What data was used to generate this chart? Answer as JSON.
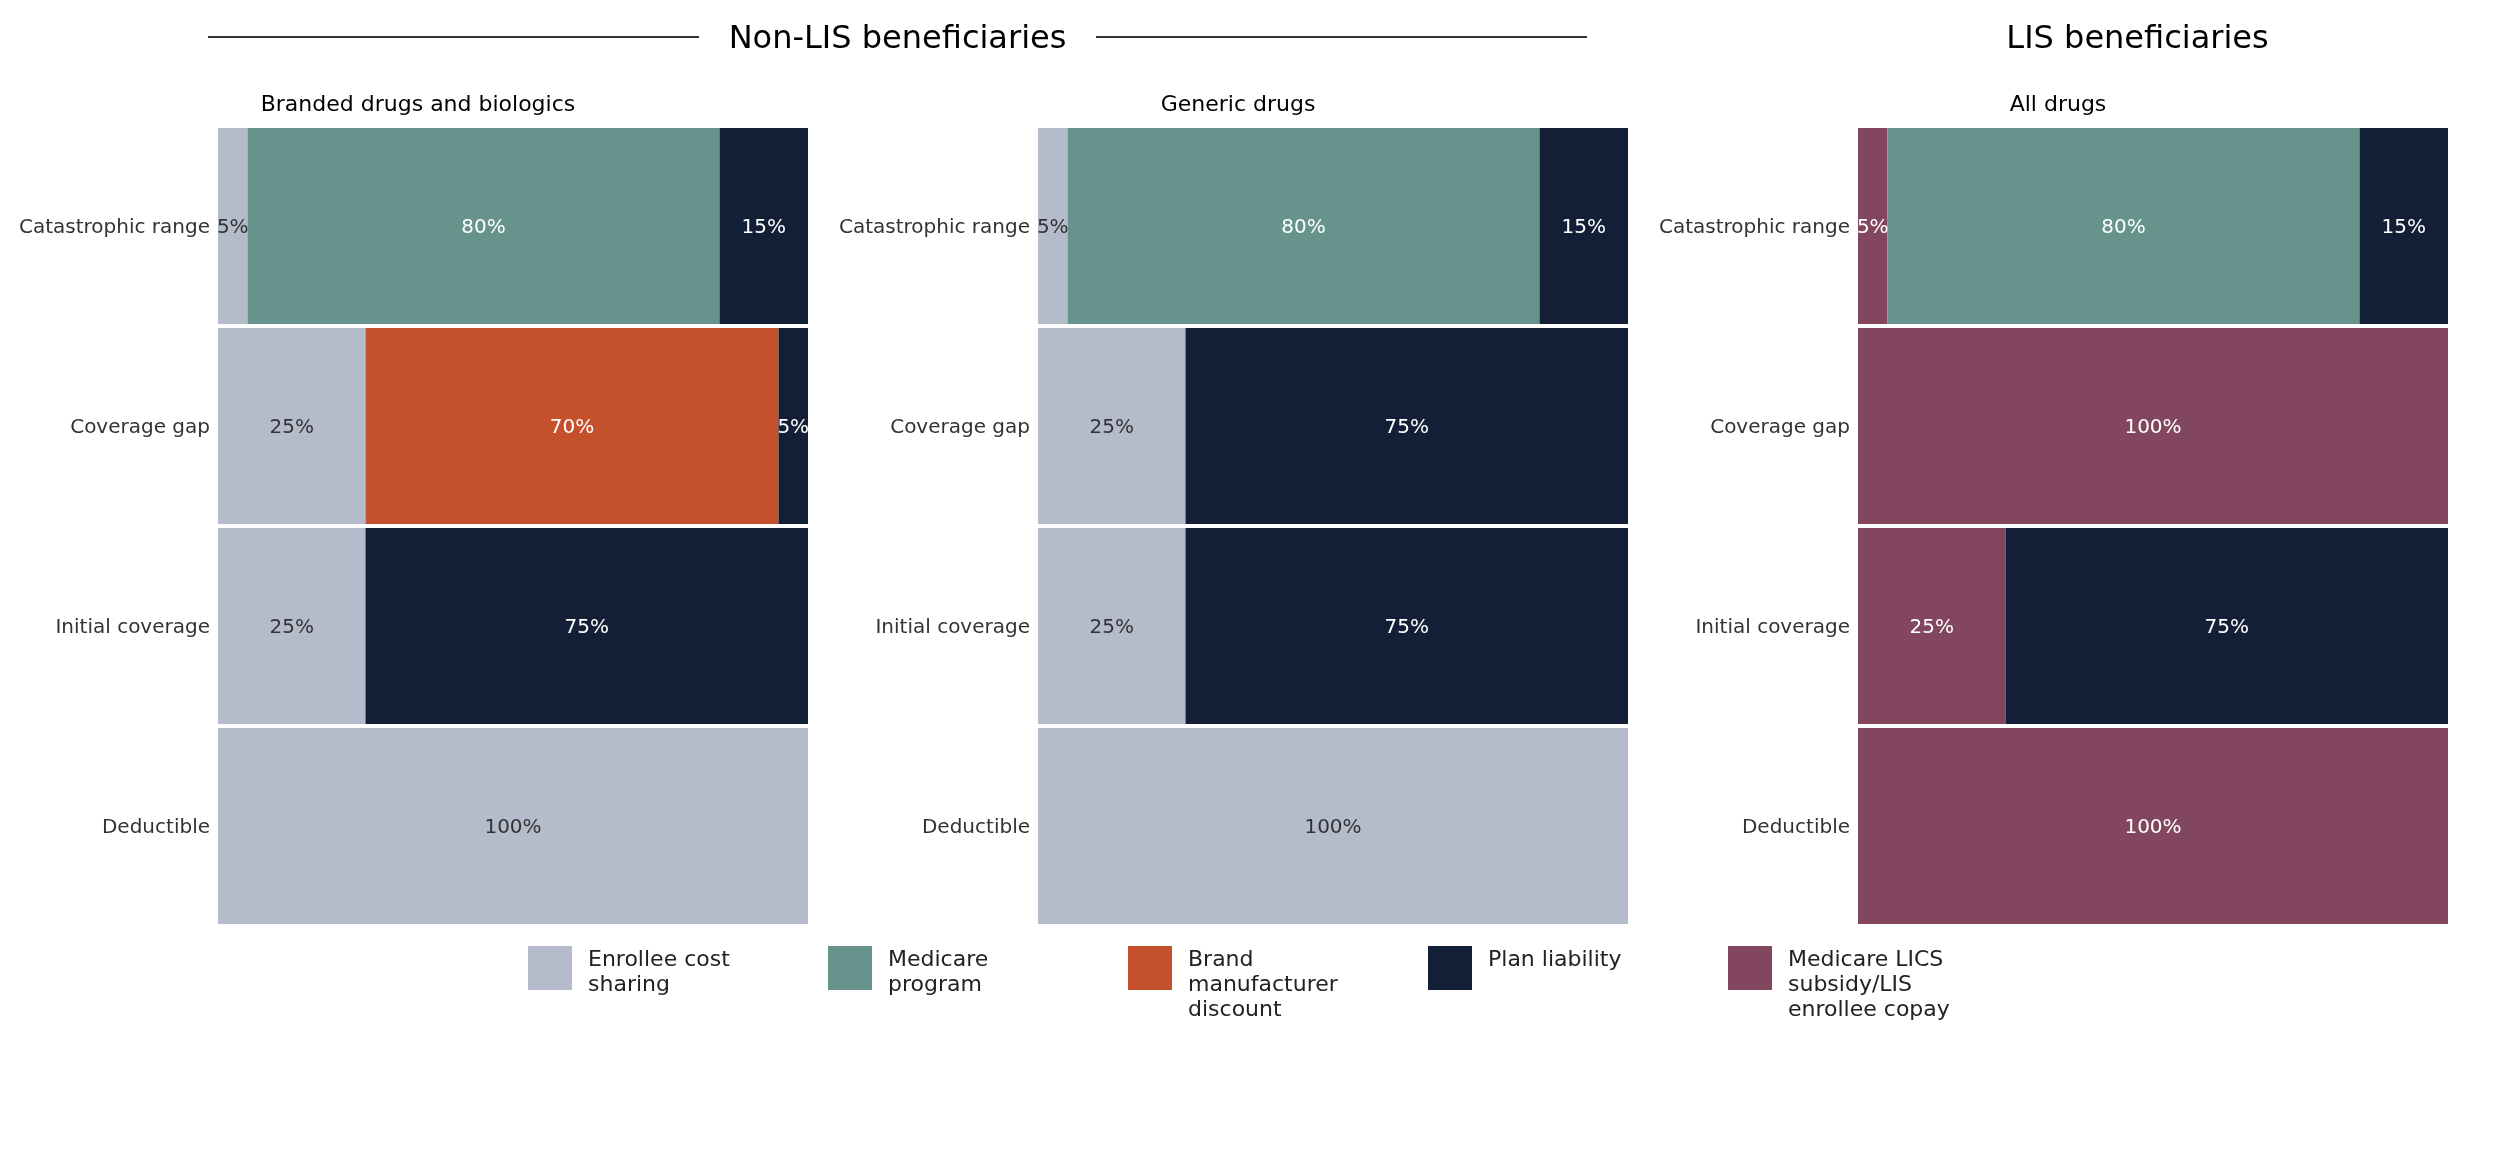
{
  "chart_data": [
    {
      "type": "bar",
      "title": "Non-LIS beneficiaries",
      "subtitle": "Branded drugs and biologics",
      "orientation": "horizontal",
      "stacked": true,
      "categories": [
        "Catastrophic range",
        "Coverage gap",
        "Initial coverage",
        "Deductible"
      ],
      "xlim": [
        0,
        100
      ],
      "tick_labels": "y",
      "legend": "bottom",
      "series": [
        {
          "name": "Enrollee cost sharing",
          "color": "#b4bccb",
          "values": [
            5,
            25,
            25,
            100
          ],
          "value_labels": [
            "5%",
            "25%",
            "25%",
            "100%"
          ]
        },
        {
          "name": "Medicare program",
          "color": "#66948c",
          "values": [
            80,
            null,
            null,
            null
          ],
          "value_labels": [
            "80%",
            null,
            null,
            null
          ]
        },
        {
          "name": "Brand manufacturer discount",
          "color": "#c4502c",
          "values": [
            null,
            70,
            null,
            null
          ],
          "value_labels": [
            null,
            "70%",
            null,
            null
          ]
        },
        {
          "name": "Plan liability",
          "color": "#131f36",
          "values": [
            15,
            5,
            75,
            null
          ],
          "value_labels": [
            "15%",
            "5%",
            "75%",
            null
          ]
        },
        {
          "name": "Medicare LICS subsidy/LIS enrollee copay",
          "color": "#82475e",
          "values": [
            null,
            null,
            null,
            null
          ],
          "value_labels": [
            null,
            null,
            null,
            null
          ]
        }
      ]
    },
    {
      "type": "bar",
      "subtitle": "Generic drugs",
      "orientation": "horizontal",
      "stacked": true,
      "categories": [
        "Catastrophic range",
        "Coverage gap",
        "Initial coverage",
        "Deductible"
      ],
      "xlim": [
        0,
        100
      ],
      "tick_labels": "y",
      "series": [
        {
          "color": "#b4bccb",
          "values": [
            5,
            25,
            25,
            100
          ],
          "value_labels": [
            "5%",
            "25%",
            "25%",
            "100%"
          ]
        },
        {
          "color": "#66948c",
          "values": [
            80,
            null,
            null,
            null
          ],
          "value_labels": [
            "80%",
            null,
            null,
            null
          ]
        },
        {
          "color": "#131f36",
          "values": [
            15,
            75,
            75,
            null
          ],
          "value_labels": [
            "15%",
            "75%",
            "75%",
            null
          ]
        }
      ]
    },
    {
      "type": "bar",
      "title": "LIS beneficiaries",
      "subtitle": "All drugs",
      "orientation": "horizontal",
      "stacked": true,
      "categories": [
        "Catastrophic range",
        "Coverage gap",
        "Initial coverage",
        "Deductible"
      ],
      "xlim": [
        0,
        100
      ],
      "tick_labels": "y",
      "series": [
        {
          "color": "#82475e",
          "values": [
            5,
            100,
            25,
            100
          ],
          "value_labels": [
            "5%",
            "100%",
            "25%",
            "100%"
          ]
        },
        {
          "color": "#66948c",
          "values": [
            80,
            null,
            null,
            null
          ],
          "value_labels": [
            "80%",
            null,
            null,
            null
          ]
        },
        {
          "color": "#131f36",
          "values": [
            15,
            null,
            75,
            null
          ],
          "value_labels": [
            "15%",
            null,
            "75%",
            null
          ]
        }
      ]
    }
  ]
}
